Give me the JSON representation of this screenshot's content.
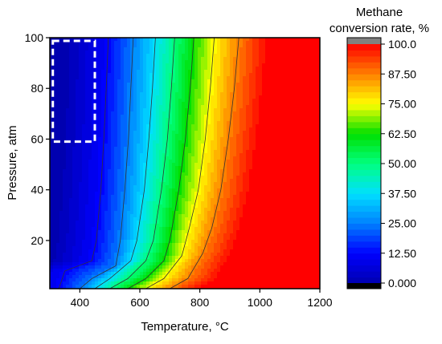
{
  "chart_data": {
    "type": "heatmap",
    "xlabel": "Temperature, °C",
    "ylabel": "Pressure, atm",
    "xlim": [
      300,
      1200
    ],
    "ylim": [
      1,
      100
    ],
    "xticks": [
      "400",
      "600",
      "800",
      "1000",
      "1200"
    ],
    "yticks": [
      "20",
      "40",
      "60",
      "80",
      "100"
    ],
    "colorbar": {
      "title_line1": "Methane",
      "title_line2": "conversion rate, %",
      "range": [
        0,
        100
      ],
      "ticks": [
        "0.000",
        "12.50",
        "25.00",
        "37.50",
        "50.00",
        "62.50",
        "75.00",
        "87.50",
        "100.0"
      ],
      "colors": [
        "#0000b0",
        "#0000ff",
        "#0080ff",
        "#00e0ff",
        "#00ff80",
        "#00e000",
        "#ffff00",
        "#ff8000",
        "#ff0000"
      ]
    },
    "contours": [
      {
        "level": 12.5,
        "points": [
          [
            330,
            1
          ],
          [
            350,
            8
          ],
          [
            440,
            12
          ],
          [
            455,
            20
          ],
          [
            470,
            40
          ],
          [
            480,
            60
          ],
          [
            488,
            80
          ],
          [
            495,
            100
          ]
        ]
      },
      {
        "level": 25,
        "points": [
          [
            400,
            1
          ],
          [
            440,
            5
          ],
          [
            520,
            10
          ],
          [
            535,
            20
          ],
          [
            550,
            40
          ],
          [
            562,
            60
          ],
          [
            570,
            80
          ],
          [
            578,
            100
          ]
        ]
      },
      {
        "level": 37.5,
        "points": [
          [
            450,
            1
          ],
          [
            500,
            5
          ],
          [
            570,
            12
          ],
          [
            590,
            20
          ],
          [
            615,
            40
          ],
          [
            630,
            60
          ],
          [
            642,
            80
          ],
          [
            652,
            100
          ]
        ]
      },
      {
        "level": 50,
        "points": [
          [
            500,
            1
          ],
          [
            560,
            5
          ],
          [
            620,
            12
          ],
          [
            645,
            20
          ],
          [
            672,
            40
          ],
          [
            692,
            60
          ],
          [
            705,
            80
          ],
          [
            716,
            100
          ]
        ]
      },
      {
        "level": 62.5,
        "points": [
          [
            560,
            1
          ],
          [
            620,
            5
          ],
          [
            680,
            12
          ],
          [
            700,
            20
          ],
          [
            730,
            40
          ],
          [
            752,
            60
          ],
          [
            768,
            80
          ],
          [
            780,
            100
          ]
        ]
      },
      {
        "level": 75,
        "points": [
          [
            620,
            1
          ],
          [
            680,
            5
          ],
          [
            740,
            14
          ],
          [
            765,
            25
          ],
          [
            795,
            40
          ],
          [
            818,
            60
          ],
          [
            835,
            80
          ],
          [
            848,
            100
          ]
        ]
      },
      {
        "level": 87.5,
        "points": [
          [
            700,
            1
          ],
          [
            760,
            5
          ],
          [
            810,
            15
          ],
          [
            840,
            25
          ],
          [
            870,
            40
          ],
          [
            895,
            60
          ],
          [
            915,
            80
          ],
          [
            930,
            100
          ]
        ]
      }
    ],
    "highlight_region": {
      "x_range": [
        310,
        450
      ],
      "y_range": [
        59,
        100
      ]
    }
  }
}
